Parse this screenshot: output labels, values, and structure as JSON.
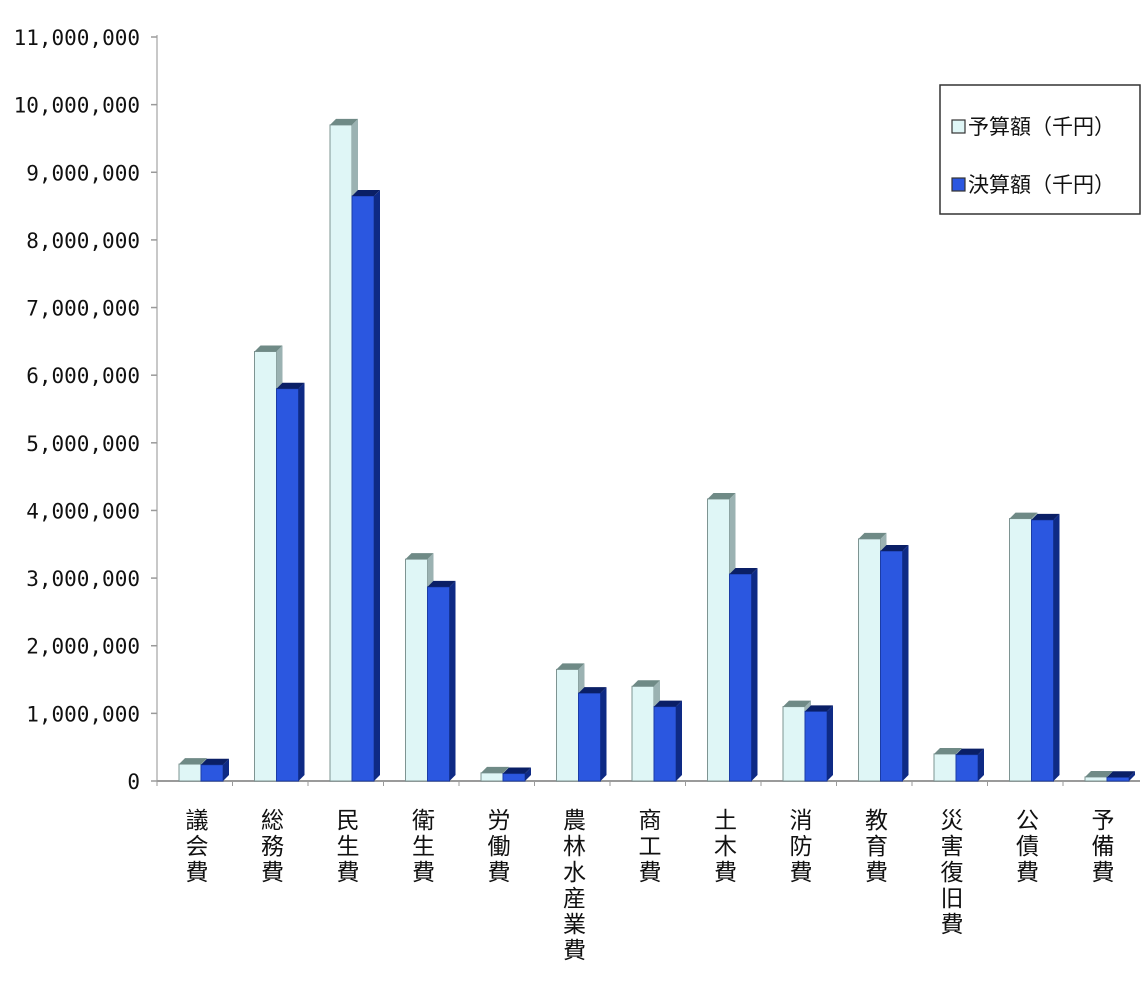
{
  "chart_data": {
    "type": "bar",
    "title": "",
    "xlabel": "",
    "ylabel": "",
    "ylim": [
      0,
      11000000
    ],
    "y_ticks": [
      {
        "value": 0,
        "label": "0"
      },
      {
        "value": 1000000,
        "label": "1,000,000"
      },
      {
        "value": 2000000,
        "label": "2,000,000"
      },
      {
        "value": 3000000,
        "label": "3,000,000"
      },
      {
        "value": 4000000,
        "label": "4,000,000"
      },
      {
        "value": 5000000,
        "label": "5,000,000"
      },
      {
        "value": 6000000,
        "label": "6,000,000"
      },
      {
        "value": 7000000,
        "label": "7,000,000"
      },
      {
        "value": 8000000,
        "label": "8,000,000"
      },
      {
        "value": 9000000,
        "label": "9,000,000"
      },
      {
        "value": 10000000,
        "label": "10,000,000"
      },
      {
        "value": 11000000,
        "label": "11,000,000"
      }
    ],
    "grid": false,
    "legend_position": "top-right",
    "categories": [
      "議会費",
      "総務費",
      "民生費",
      "衛生費",
      "労働費",
      "農林水産業費",
      "商工費",
      "土木費",
      "消防費",
      "教育費",
      "災害復旧費",
      "公債費",
      "予備費"
    ],
    "series": [
      {
        "name": "予算額（千円）",
        "color": "#dff6f6",
        "values": [
          250000,
          6350000,
          9700000,
          3280000,
          120000,
          1650000,
          1400000,
          4170000,
          1100000,
          3580000,
          400000,
          3880000,
          60000
        ]
      },
      {
        "name": "決算額（千円）",
        "color": "#2b57e0",
        "values": [
          240000,
          5800000,
          8650000,
          2870000,
          110000,
          1300000,
          1100000,
          3060000,
          1030000,
          3400000,
          390000,
          3860000,
          55000
        ]
      }
    ]
  }
}
